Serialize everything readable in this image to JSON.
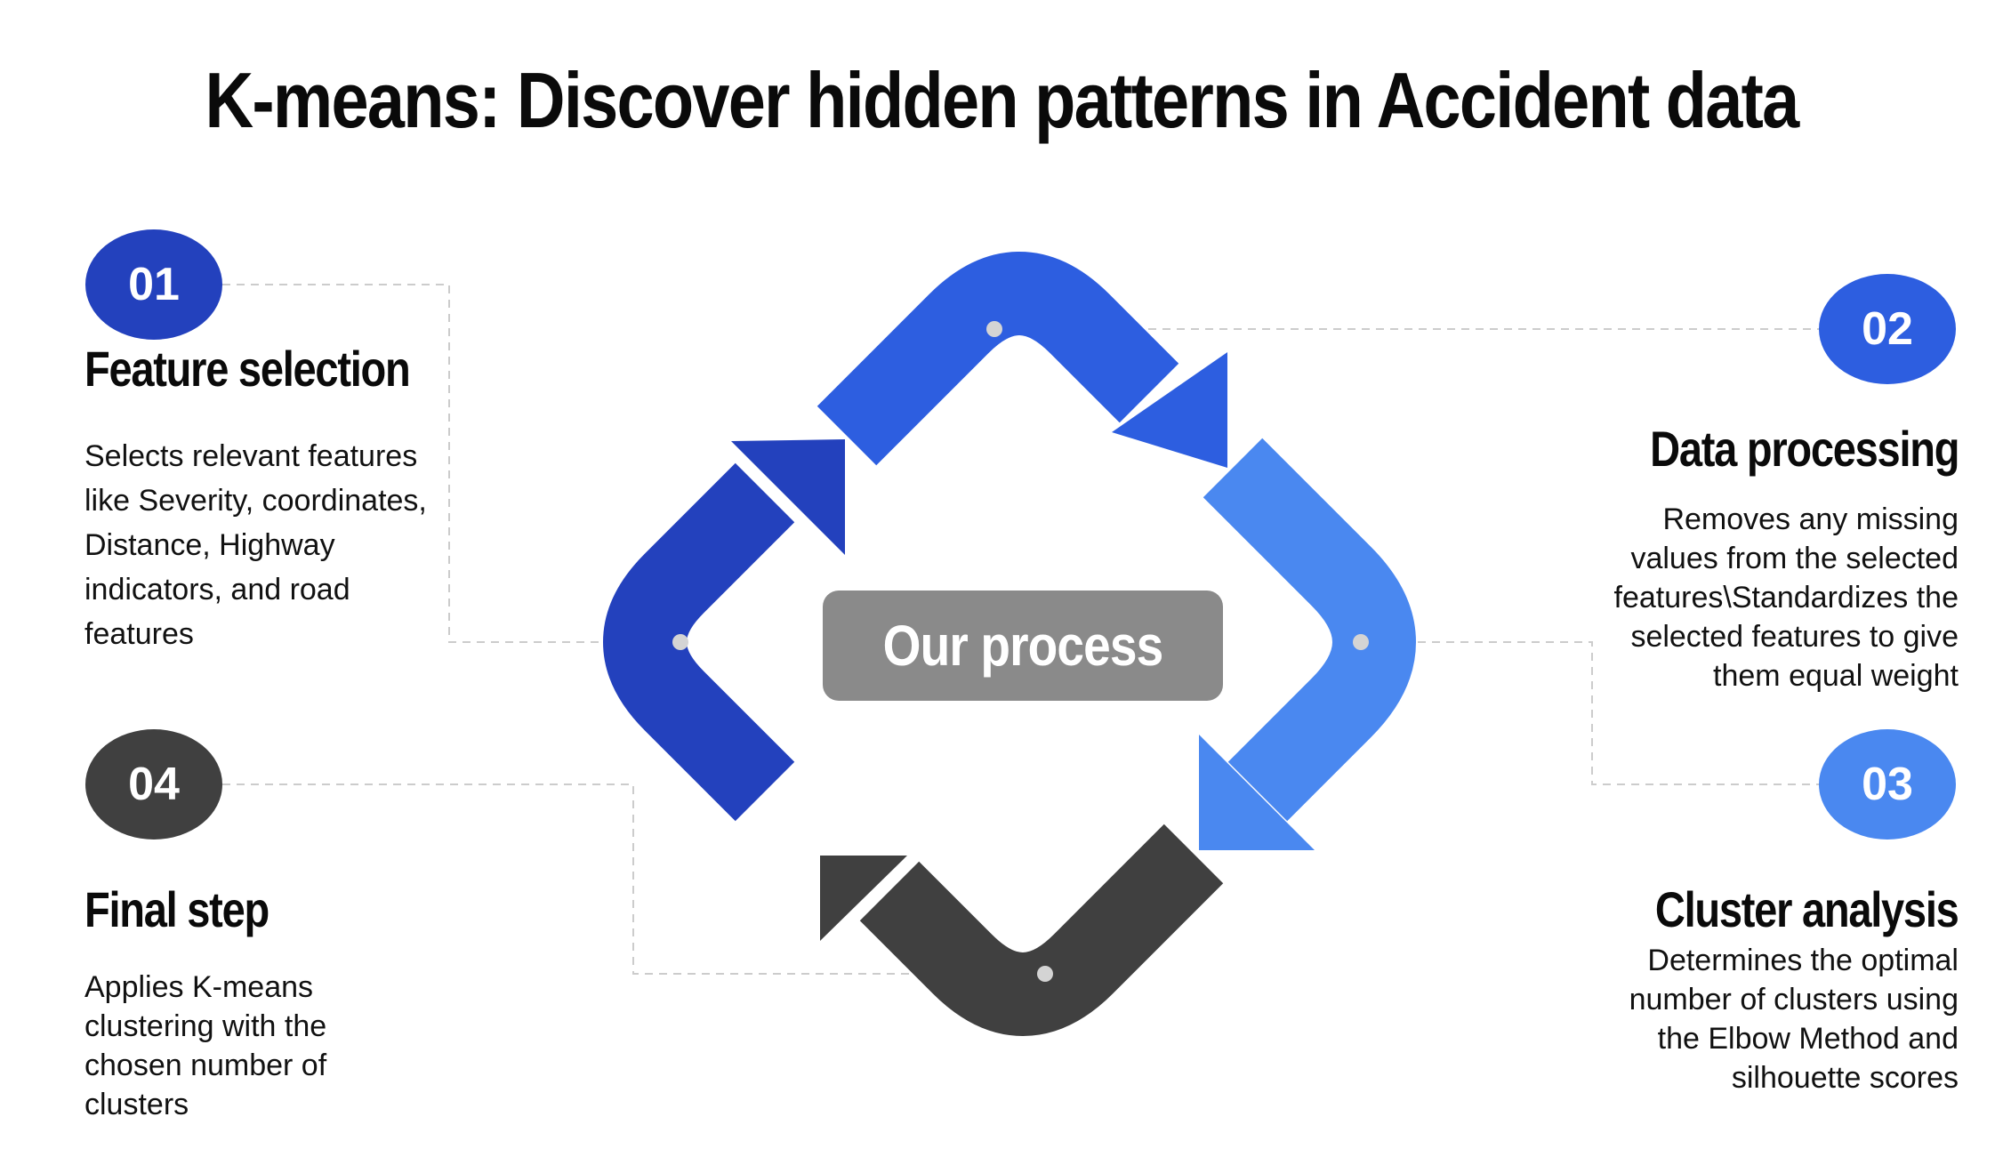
{
  "title": "K-means: Discover hidden patterns in Accident data",
  "center_label": "Our process",
  "colors": {
    "step1": "#2341bd",
    "step2": "#2d5ee0",
    "step3": "#4a88f0",
    "step4": "#404040",
    "center": "#8a8a8a",
    "connector": "#cccccc"
  },
  "steps": [
    {
      "number": "01",
      "title": "Feature selection",
      "description": "Selects relevant features like Severity, coordinates, Distance, Highway indicators, and road features"
    },
    {
      "number": "02",
      "title": "Data processing",
      "description": "Removes any missing values from the selected features\\Standardizes the selected features to give them equal weight"
    },
    {
      "number": "03",
      "title": "Cluster analysis",
      "description": "Determines the optimal number of clusters using the Elbow Method and silhouette scores"
    },
    {
      "number": "04",
      "title": "Final step",
      "description": "Applies K-means clustering with the chosen number of clusters"
    }
  ]
}
